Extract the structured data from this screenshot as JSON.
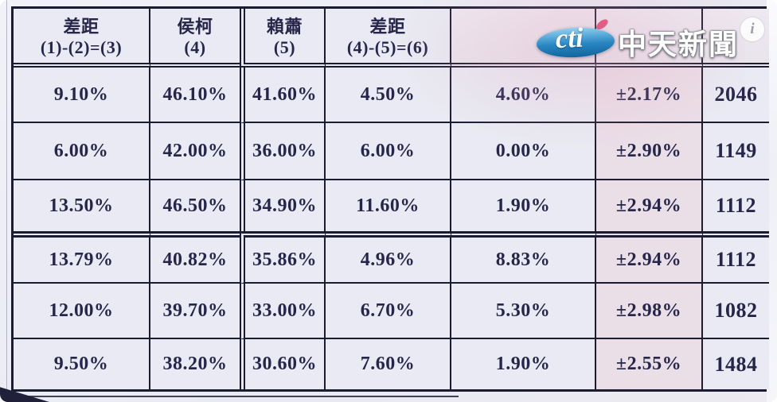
{
  "branding": {
    "cti": "cti",
    "channel": "中天新聞",
    "info": "i"
  },
  "table": {
    "headers": [
      {
        "line1": "差距",
        "line2": "(1)-(2)=(3)"
      },
      {
        "line1": "侯柯",
        "line2": "(4)"
      },
      {
        "line1": "賴蕭",
        "line2": "(5)"
      },
      {
        "line1": "差距",
        "line2": "(4)-(5)=(6)"
      },
      {
        "line1": "",
        "line2": ""
      },
      {
        "line1": "",
        "line2": ""
      },
      {
        "line1": "",
        "line2": ""
      }
    ],
    "rows": [
      [
        "9.10%",
        "46.10%",
        "41.60%",
        "4.50%",
        "4.60%",
        "±2.17%",
        "2046"
      ],
      [
        "6.00%",
        "42.00%",
        "36.00%",
        "6.00%",
        "0.00%",
        "±2.90%",
        "1149"
      ],
      [
        "13.50%",
        "46.50%",
        "34.90%",
        "11.60%",
        "1.90%",
        "±2.94%",
        "1112"
      ],
      [
        "13.79%",
        "40.82%",
        "35.86%",
        "4.96%",
        "8.83%",
        "±2.94%",
        "1112"
      ],
      [
        "12.00%",
        "39.70%",
        "33.00%",
        "6.70%",
        "5.30%",
        "±2.98%",
        "1082"
      ],
      [
        "9.50%",
        "38.20%",
        "30.60%",
        "7.60%",
        "1.90%",
        "±2.55%",
        "1484"
      ]
    ]
  },
  "colors": {
    "line": "#1c1c30",
    "cell_bg": "#e9eaf3",
    "pink_cell_bg": "#eadee7",
    "text": "#26264a",
    "logo_blue": "#2a86c2",
    "logo_dot": "#e25c86"
  }
}
